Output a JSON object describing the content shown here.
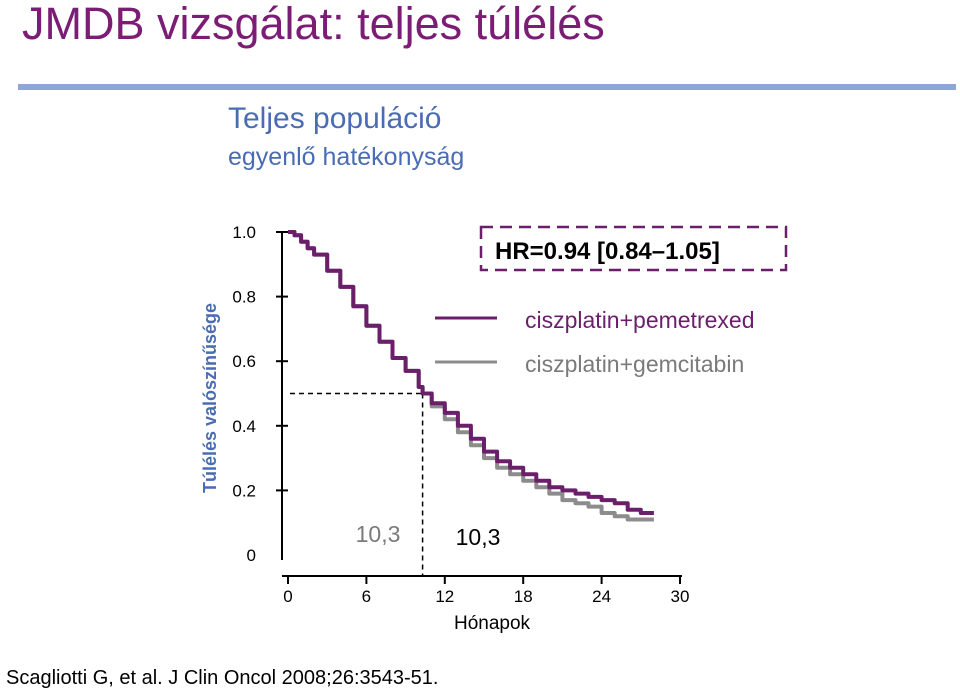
{
  "slide": {
    "title": "JMDB vizsgálat: teljes túlélés",
    "subtitle": "Teljes populáció",
    "subtitle2": "egyenlő hatékonyság",
    "citation": "Scagliotti G, et al. J Clin Oncol 2008;26:3543-51."
  },
  "colors": {
    "title": "#7B1D74",
    "subtitle": "#4A6CB3",
    "rule": "#8DA6D6",
    "series_pemetrexed": "#6B1F6B",
    "series_gemcitabin": "#8C8C8C",
    "hr_box_border": "#6B1F6B"
  },
  "chart_data": {
    "type": "line",
    "ylabel": "Túlélés valószínűsége",
    "xlabel": "Hónapok",
    "x_ticks": [
      "0",
      "6",
      "12",
      "18",
      "24",
      "30"
    ],
    "y_ticks": [
      "0",
      "0.2",
      "0.4",
      "0.6",
      "0.8",
      "1.0"
    ],
    "xlim": [
      0,
      30
    ],
    "ylim": [
      0,
      1.0
    ],
    "hr_text": "HR=0.94 [0.84–1.05]",
    "median_labels": [
      "10,3",
      "10,3"
    ],
    "median_x": 10.3,
    "median_y": 0.5,
    "legend": [
      "ciszplatin+pemetrexed",
      "ciszplatin+gemcitabin"
    ],
    "series": [
      {
        "name": "ciszplatin+pemetrexed",
        "x": [
          0,
          0.5,
          1,
          1.5,
          2,
          3,
          4,
          5,
          6,
          7,
          8,
          9,
          10,
          10.3,
          11,
          12,
          13,
          14,
          15,
          16,
          17,
          18,
          19,
          20,
          21,
          22,
          23,
          24,
          25,
          26,
          27,
          28
        ],
        "y": [
          1.0,
          0.99,
          0.97,
          0.95,
          0.93,
          0.88,
          0.83,
          0.77,
          0.71,
          0.66,
          0.61,
          0.57,
          0.52,
          0.5,
          0.47,
          0.44,
          0.4,
          0.36,
          0.32,
          0.29,
          0.27,
          0.25,
          0.23,
          0.21,
          0.2,
          0.19,
          0.18,
          0.17,
          0.16,
          0.14,
          0.13,
          0.13
        ]
      },
      {
        "name": "ciszplatin+gemcitabin",
        "x": [
          0,
          0.5,
          1,
          1.5,
          2,
          3,
          4,
          5,
          6,
          7,
          8,
          9,
          10,
          10.3,
          11,
          12,
          13,
          14,
          15,
          16,
          17,
          18,
          19,
          20,
          21,
          22,
          23,
          24,
          25,
          26,
          27,
          28
        ],
        "y": [
          1.0,
          0.99,
          0.97,
          0.95,
          0.93,
          0.88,
          0.83,
          0.77,
          0.71,
          0.66,
          0.61,
          0.57,
          0.52,
          0.5,
          0.46,
          0.42,
          0.38,
          0.34,
          0.3,
          0.27,
          0.25,
          0.23,
          0.21,
          0.19,
          0.17,
          0.16,
          0.15,
          0.13,
          0.12,
          0.11,
          0.11,
          0.11
        ]
      }
    ]
  }
}
